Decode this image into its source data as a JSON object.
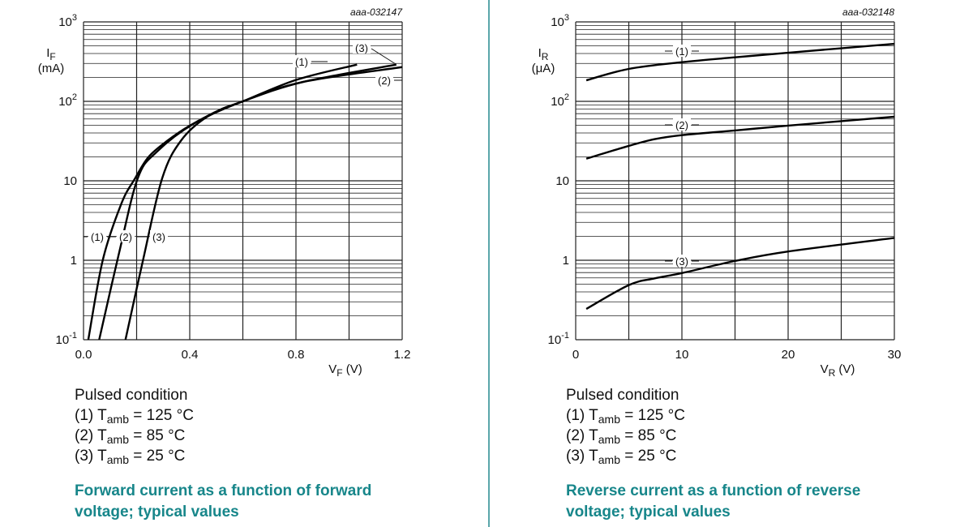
{
  "chart_data": [
    {
      "type": "line",
      "id_label": "aaa-032147",
      "xlabel": "VF (V)",
      "xlabel_main": "V",
      "xlabel_sub": "F",
      "xlabel_unit": " (V)",
      "ylabel_main": "I",
      "ylabel_sub": "F",
      "ylabel_unit": "(mA)",
      "xlim": [
        0,
        1.2
      ],
      "xticks": [
        0.0,
        0.4,
        0.8,
        1.2
      ],
      "xtick_labels": [
        "0.0",
        "0.4",
        "0.8",
        "1.2"
      ],
      "x_grid_step": 0.2,
      "ylim": [
        0.1,
        1000
      ],
      "yscale": "log",
      "ytick_labels": [
        "10-1",
        "1",
        "10",
        "102",
        "103"
      ],
      "grid": true,
      "series": [
        {
          "name": "(1)",
          "x": [
            0.018,
            0.073,
            0.143,
            0.194,
            0.245,
            0.316,
            0.398,
            0.52,
            0.6,
            0.8,
            1.03
          ],
          "y": [
            0.1,
            1.02,
            5.2,
            10.7,
            20,
            32,
            49,
            80,
            100,
            186,
            290
          ]
        },
        {
          "name": "(2)",
          "x": [
            0.059,
            0.133,
            0.204,
            0.275,
            0.418,
            0.6,
            0.825,
            1.2
          ],
          "y": [
            0.1,
            1.2,
            10.7,
            23,
            53,
            100,
            175,
            270
          ]
        },
        {
          "name": "(3)",
          "x": [
            0.158,
            0.224,
            0.296,
            0.367,
            0.469,
            0.6,
            0.825,
            1.178
          ],
          "y": [
            0.1,
            1.0,
            10.7,
            32,
            65,
            100,
            175,
            290
          ]
        }
      ]
    },
    {
      "type": "line",
      "id_label": "aaa-032148",
      "xlabel": "VR (V)",
      "xlabel_main": "V",
      "xlabel_sub": "R",
      "xlabel_unit": " (V)",
      "ylabel_main": "I",
      "ylabel_sub": "R",
      "ylabel_unit": "(μA)",
      "xlim": [
        0,
        30
      ],
      "xticks": [
        0,
        10,
        20,
        30
      ],
      "xtick_labels": [
        "0",
        "10",
        "20",
        "30"
      ],
      "x_grid_step": 5,
      "ylim": [
        0.1,
        1000
      ],
      "yscale": "log",
      "ytick_labels": [
        "10-1",
        "1",
        "10",
        "102",
        "103"
      ],
      "grid": true,
      "series": [
        {
          "name": "(1)",
          "x": [
            1,
            5,
            10,
            15,
            20,
            30
          ],
          "y": [
            184,
            256,
            311,
            358,
            409,
            530
          ]
        },
        {
          "name": "(2)",
          "x": [
            1,
            5,
            7.4,
            10,
            15,
            20,
            30
          ],
          "y": [
            19,
            27.5,
            33.4,
            37.6,
            43,
            49.5,
            64
          ]
        },
        {
          "name": "(3)",
          "x": [
            1,
            5,
            7.4,
            10,
            15,
            20,
            30
          ],
          "y": [
            0.244,
            0.487,
            0.59,
            0.69,
            0.98,
            1.29,
            1.91
          ]
        }
      ]
    }
  ],
  "legends": [
    {
      "heading": "Pulsed condition",
      "lines": [
        {
          "prefix": "(1) T",
          "sub": "amb",
          "suffix": " = 125 °C"
        },
        {
          "prefix": "(2) T",
          "sub": "amb",
          "suffix": " = 85 °C"
        },
        {
          "prefix": "(3) T",
          "sub": "amb",
          "suffix": " = 25 °C"
        }
      ],
      "caption_1": "Forward current as a function of forward",
      "caption_2": "voltage; typical values"
    },
    {
      "heading": "Pulsed condition",
      "lines": [
        {
          "prefix": "(1) T",
          "sub": "amb",
          "suffix": " = 125 °C"
        },
        {
          "prefix": "(2) T",
          "sub": "amb",
          "suffix": " = 85 °C"
        },
        {
          "prefix": "(3) T",
          "sub": "amb",
          "suffix": " = 25 °C"
        }
      ],
      "caption_1": "Reverse current as a function of reverse",
      "caption_2": "voltage; typical values"
    }
  ],
  "colors": {
    "caption": "#17868a",
    "divider": "#5aa6aa",
    "curve": "#000000",
    "grid": "#222222"
  }
}
